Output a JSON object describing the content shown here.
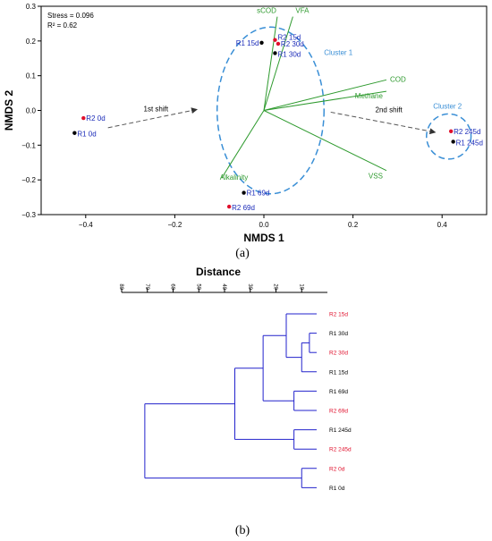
{
  "chart_data": [
    {
      "type": "scatter",
      "panel_label": "(a)",
      "xlabel": "NMDS 1",
      "ylabel": "NMDS 2",
      "xlim": [
        -0.5,
        0.5
      ],
      "ylim": [
        -0.3,
        0.3
      ],
      "x_ticks": [
        -0.4,
        -0.2,
        0.0,
        0.2,
        0.4
      ],
      "x_tick_labels": [
        "−0.4",
        "−0.2",
        "0.0",
        "0.2",
        "0.4"
      ],
      "y_ticks": [
        -0.3,
        -0.2,
        -0.1,
        0.0,
        0.1,
        0.2,
        0.3
      ],
      "y_tick_labels": [
        "−0.3",
        "−0.2",
        "−0.1",
        "0.0",
        "0.1",
        "0.2",
        "0.3"
      ],
      "stats": [
        "Stress = 0.096",
        "R² = 0.62"
      ],
      "grid": false,
      "points": [
        {
          "label": "R2 0d",
          "x": -0.405,
          "y": -0.022,
          "color": "#e0102c"
        },
        {
          "label": "R1 0d",
          "x": -0.425,
          "y": -0.065,
          "color": "#000000"
        },
        {
          "label": "R1 15d",
          "x": -0.005,
          "y": 0.195,
          "color": "#000000"
        },
        {
          "label": "R2 15d",
          "x": 0.025,
          "y": 0.203,
          "color": "#e0102c"
        },
        {
          "label": "R2 30d",
          "x": 0.032,
          "y": 0.192,
          "color": "#e0102c"
        },
        {
          "label": "R1 30d",
          "x": 0.025,
          "y": 0.165,
          "color": "#000000"
        },
        {
          "label": "R1 69d",
          "x": -0.045,
          "y": -0.237,
          "color": "#000000"
        },
        {
          "label": "R2 69d",
          "x": -0.078,
          "y": -0.277,
          "color": "#e0102c"
        },
        {
          "label": "R2 245d",
          "x": 0.42,
          "y": -0.06,
          "color": "#e0102c"
        },
        {
          "label": "R1 245d",
          "x": 0.425,
          "y": -0.09,
          "color": "#000000"
        }
      ],
      "vectors": [
        {
          "label": "sCOD",
          "x": 0.03,
          "y": 0.27
        },
        {
          "label": "VFA",
          "x": 0.065,
          "y": 0.27
        },
        {
          "label": "COD",
          "x": 0.275,
          "y": 0.088
        },
        {
          "label": "Methane",
          "x": 0.275,
          "y": 0.055
        },
        {
          "label": "VSS",
          "x": 0.275,
          "y": -0.173
        },
        {
          "label": "Alkalinity",
          "x": -0.095,
          "y": -0.195
        }
      ],
      "clusters": [
        {
          "label": "Cluster 1",
          "cx": 0.015,
          "cy": 0.0,
          "rx": 0.12,
          "ry": 0.24
        },
        {
          "label": "Cluster 2",
          "cx": 0.415,
          "cy": -0.075,
          "rx": 0.05,
          "ry": 0.065
        }
      ],
      "shifts": [
        {
          "label": "1st shift",
          "from": [
            -0.35,
            -0.05
          ],
          "to": [
            -0.15,
            0.003
          ]
        },
        {
          "label": "2nd shift",
          "from": [
            0.15,
            -0.005
          ],
          "to": [
            0.385,
            -0.063
          ]
        }
      ],
      "colors": {
        "vector": "#2e9a2e",
        "label": "#1a2ab8",
        "cluster": "#3a8fd6",
        "arrow": "#555555",
        "red": "#e0102c"
      }
    },
    {
      "type": "dendrogram",
      "panel_label": "(b)",
      "title": "Distance",
      "axis_ticks": [
        80,
        70,
        60,
        50,
        40,
        30,
        20,
        10
      ],
      "axis_tick_labels": [
        "80",
        "70",
        "60",
        "50",
        "40",
        "30",
        "20",
        "10"
      ],
      "xlim": [
        80,
        0
      ],
      "leaves": [
        {
          "label": "R2 15d",
          "color": "#e0102c"
        },
        {
          "label": "R1 30d",
          "color": "#000000"
        },
        {
          "label": "R2 30d",
          "color": "#e0102c"
        },
        {
          "label": "R1 15d",
          "color": "#000000"
        },
        {
          "label": "R1 69d",
          "color": "#000000"
        },
        {
          "label": "R2 69d",
          "color": "#e0102c"
        },
        {
          "label": "R1 245d",
          "color": "#000000"
        },
        {
          "label": "R2 245d",
          "color": "#e0102c"
        },
        {
          "label": "R2 0d",
          "color": "#e0102c"
        },
        {
          "label": "R1 0d",
          "color": "#000000"
        }
      ],
      "merges": [
        {
          "a": "L1",
          "b": "L2",
          "height": 7
        },
        {
          "a": "M0",
          "b": "L3",
          "height": 10
        },
        {
          "a": "L0",
          "b": "M1",
          "height": 16
        },
        {
          "a": "L4",
          "b": "L5",
          "height": 13
        },
        {
          "a": "M2",
          "b": "M3",
          "height": 25
        },
        {
          "a": "L6",
          "b": "L7",
          "height": 13
        },
        {
          "a": "M4",
          "b": "M5",
          "height": 36
        },
        {
          "a": "L8",
          "b": "L9",
          "height": 10
        },
        {
          "a": "M6",
          "b": "M7",
          "height": 71
        }
      ],
      "link_color": "#2222cc"
    }
  ]
}
